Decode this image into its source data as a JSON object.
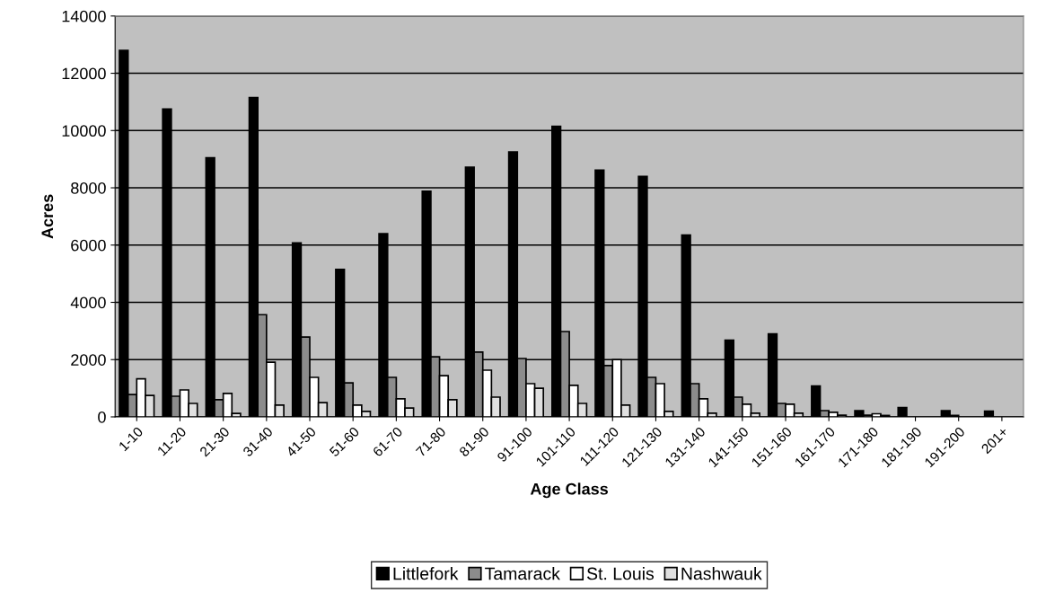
{
  "chart_data": {
    "type": "bar",
    "xlabel": "Age Class",
    "ylabel": "Acres",
    "categories": [
      "1-10",
      "11-20",
      "21-30",
      "31-40",
      "41-50",
      "51-60",
      "61-70",
      "71-80",
      "81-90",
      "91-100",
      "101-110",
      "111-120",
      "121-130",
      "131-140",
      "141-150",
      "151-160",
      "161-170",
      "171-180",
      "181-190",
      "191-200",
      "201+"
    ],
    "series": [
      {
        "name": "Littlefork",
        "color": "#000000",
        "values": [
          12800,
          10750,
          9050,
          11150,
          6080,
          5150,
          6400,
          7880,
          8720,
          9250,
          10150,
          8620,
          8400,
          6350,
          2680,
          2900,
          1080,
          220,
          330,
          220,
          200
        ]
      },
      {
        "name": "Tamarack",
        "color": "#8c8c8c",
        "values": [
          780,
          720,
          600,
          3570,
          2790,
          1190,
          1380,
          2100,
          2260,
          2040,
          2980,
          1790,
          1380,
          1160,
          690,
          470,
          220,
          60,
          null,
          50,
          null
        ]
      },
      {
        "name": "St. Louis",
        "color": "#ffffff",
        "values": [
          1330,
          940,
          820,
          1910,
          1380,
          410,
          630,
          1440,
          1630,
          1160,
          1100,
          2000,
          1160,
          630,
          440,
          440,
          160,
          110,
          null,
          null,
          null
        ]
      },
      {
        "name": "Nashwauk",
        "color": "#e0e0e0",
        "values": [
          750,
          470,
          120,
          410,
          500,
          190,
          310,
          600,
          690,
          1000,
          470,
          410,
          190,
          130,
          130,
          130,
          60,
          50,
          null,
          null,
          null
        ]
      }
    ],
    "ylim": [
      0,
      14000
    ],
    "yticks": [
      0,
      2000,
      4000,
      6000,
      8000,
      10000,
      12000,
      14000
    ],
    "grid": "y",
    "legend": "bottom"
  }
}
